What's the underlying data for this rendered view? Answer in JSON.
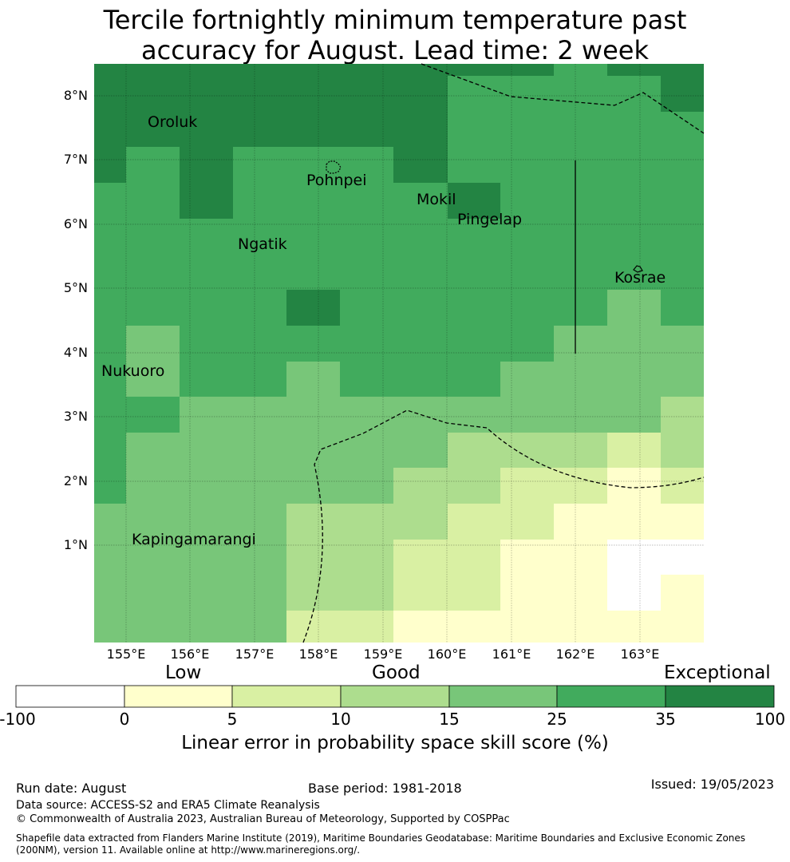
{
  "title": {
    "line1": "Tercile fortnightly minimum temperature past",
    "line2": "accuracy for August. Lead time: 2 week"
  },
  "map": {
    "lat_labels": [
      "8°N",
      "7°N",
      "6°N",
      "5°N",
      "4°N",
      "3°N",
      "2°N",
      "1°N"
    ],
    "lon_labels": [
      "155°E",
      "156°E",
      "157°E",
      "158°E",
      "159°E",
      "160°E",
      "161°E",
      "162°E",
      "163°E"
    ],
    "places": [
      "Oroluk",
      "Pohnpei",
      "Mokil",
      "Pingelap",
      "Ngatik",
      "Kosrae",
      "Nukuoro",
      "Kapingamarangi"
    ],
    "grid_lines": true,
    "boundaries": "dashed maritime boundaries (EEZ)"
  },
  "colorbar": {
    "category_labels": [
      "Low",
      "Good",
      "Exceptional"
    ],
    "ticks": [
      "-100",
      "0",
      "5",
      "10",
      "15",
      "25",
      "35",
      "100"
    ],
    "colors": [
      "#ffffff",
      "#ffffcc",
      "#d9f0a3",
      "#addd8e",
      "#78c679",
      "#41ab5d",
      "#238443"
    ],
    "title": "Linear error in probability space skill score (%)"
  },
  "footer": {
    "run_date": "Run date: August",
    "base_period": "Base period: 1981-2018",
    "issued": "Issued: 19/05/2023",
    "data_source": "Data source: ACCESS-S2 and ERA5 Climate Reanalysis",
    "copyright": "© Commonwealth of Australia 2023, Australian Bureau of Meteorology, Supported by COSPPac",
    "shapefile_note": "Shapefile data extracted from Flanders Marine Institute (2019), Maritime Boundaries Geodatabase: Maritime Boundaries and Exclusive Economic Zones (200NM), version 11. Available online at http://www.marineregions.org/."
  }
}
